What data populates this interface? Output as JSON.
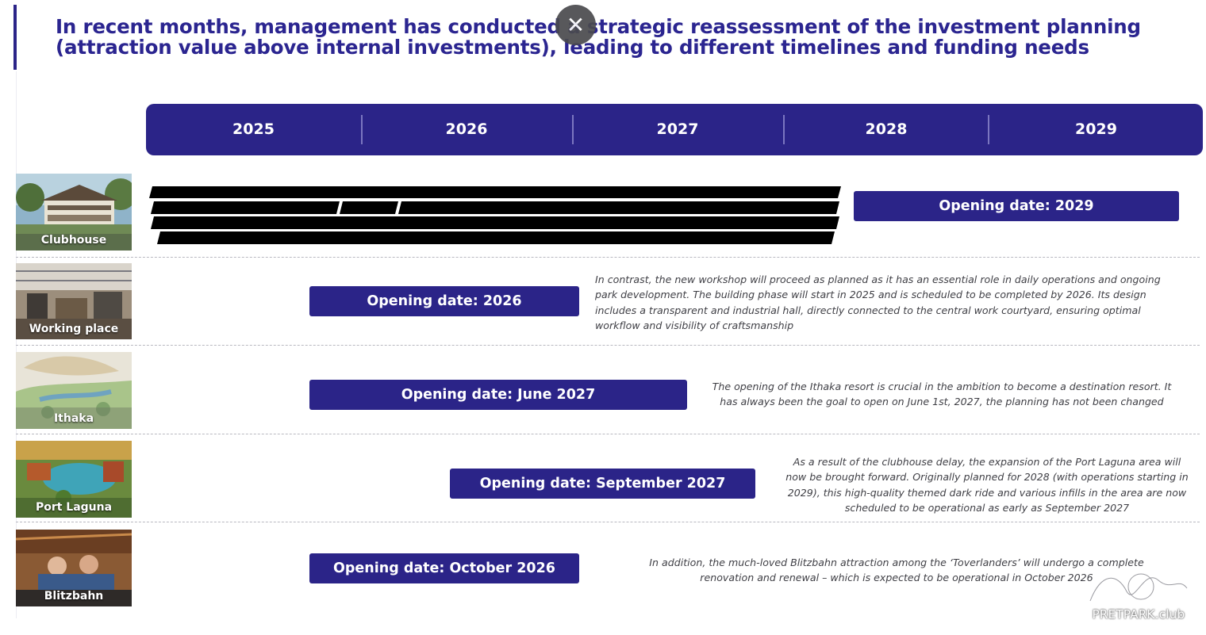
{
  "header": {
    "title_line1": "In recent months, management has conducted a strategic reassessment of the investment planning",
    "title_line2": "(attraction value above internal investments), leading to different timelines and funding needs"
  },
  "timeline": {
    "years": [
      "2025",
      "2026",
      "2027",
      "2028",
      "2029"
    ]
  },
  "rows": [
    {
      "name": "Clubhouse",
      "opening": "Opening date: 2029",
      "description": ""
    },
    {
      "name": "Working place",
      "opening": "Opening date: 2026",
      "description_lines": [
        "In contrast, the new workshop will proceed as planned as it has an essential role in daily operations and ongoing",
        "park development. The building phase will start in 2025 and is scheduled to be completed by 2026. Its design",
        "includes a transparent and industrial hall, directly connected to the central work courtyard, ensuring optimal",
        "workflow and visibility of craftsmanship"
      ]
    },
    {
      "name": "Ithaka",
      "opening": "Opening date: June 2027",
      "description_lines": [
        "The opening of the Ithaka resort is crucial in the ambition to become a destination resort. It",
        "has always been the goal to open on June 1st, 2027, the planning has not been changed"
      ]
    },
    {
      "name": "Port Laguna",
      "opening": "Opening date: September 2027",
      "description_lines": [
        "As a result of the clubhouse delay, the expansion of the Port Laguna area will",
        "now be brought forward. Originally planned for 2028 (with operations starting in",
        "2029), this high-quality themed dark ride and various infills in the area are now",
        "scheduled to be operational as early as September 2027"
      ]
    },
    {
      "name": "Blitzbahn",
      "opening": "Opening date: October 2026",
      "description_lines": [
        "In addition, the much-loved Blitzbahn attraction among  the ‘Toverlanders’ will undergo a complete",
        "renovation and renewal – which is expected to be operational in October 2026"
      ]
    }
  ],
  "overlay": {
    "close_icon": "close-icon"
  },
  "watermark": {
    "text": "PRETPARK.club"
  },
  "colors": {
    "brand_navy": "#2b2488",
    "title_color": "#2b2590",
    "redaction": "#000000"
  }
}
